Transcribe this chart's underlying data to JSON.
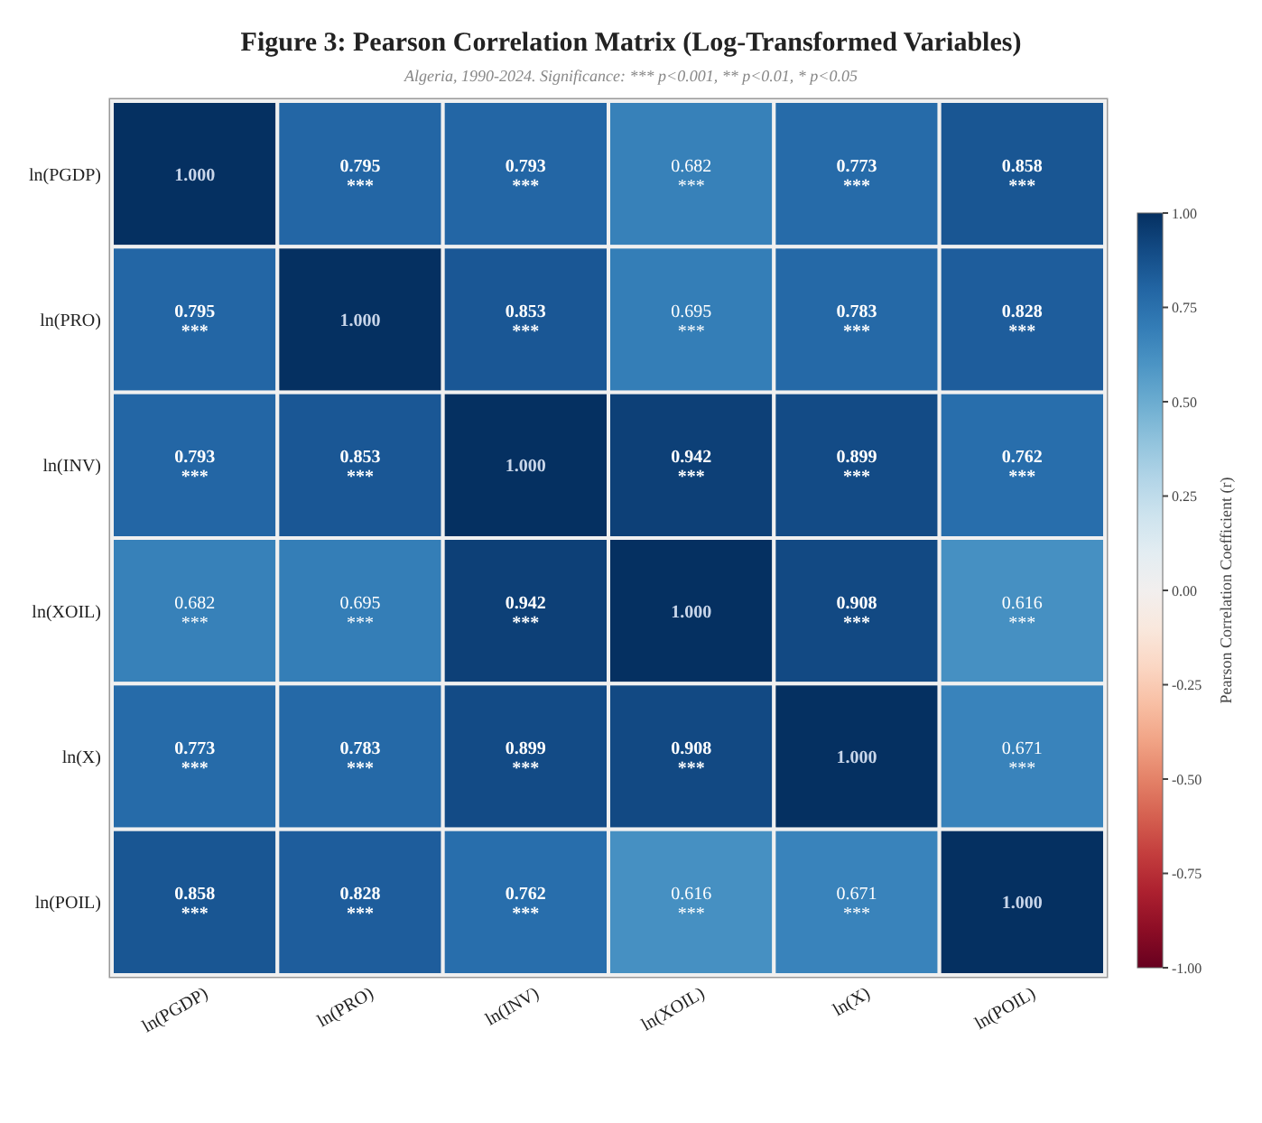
{
  "chart_data": {
    "type": "heatmap",
    "title": "Figure 3: Pearson Correlation Matrix (Log-Transformed Variables)",
    "subtitle": "Algeria, 1990-2024. Significance: *** p<0.001, ** p<0.01, * p<0.05",
    "clabel": "Pearson Correlation Coefficient (r)",
    "categories": [
      "ln(PGDP)",
      "ln(PRO)",
      "ln(INV)",
      "ln(XOIL)",
      "ln(X)",
      "ln(POIL)"
    ],
    "y_categories": [
      "ln(PGDP)",
      "ln(PRO)",
      "ln(INV)",
      "ln(XOIL)",
      "ln(X)",
      "ln(POIL)"
    ],
    "cells": [
      [
        1.0,
        0.795,
        0.793,
        0.682,
        0.773,
        0.858
      ],
      [
        0.795,
        1.0,
        0.853,
        0.695,
        0.783,
        0.828
      ],
      [
        0.793,
        0.853,
        1.0,
        0.942,
        0.899,
        0.762
      ],
      [
        0.682,
        0.695,
        0.942,
        1.0,
        0.908,
        0.616
      ],
      [
        0.773,
        0.783,
        0.899,
        0.908,
        1.0,
        0.671
      ],
      [
        0.858,
        0.828,
        0.762,
        0.616,
        0.671,
        1.0
      ]
    ],
    "cell_labels": [
      [
        "1.000",
        "0.795\n***",
        "0.793\n***",
        "0.682\n***",
        "0.773\n***",
        "0.858\n***"
      ],
      [
        "0.795\n***",
        "1.000",
        "0.853\n***",
        "0.695\n***",
        "0.783\n***",
        "0.828\n***"
      ],
      [
        "0.793\n***",
        "0.853\n***",
        "1.000",
        "0.942\n***",
        "0.899\n***",
        "0.762\n***"
      ],
      [
        "0.682\n***",
        "0.695\n***",
        "0.942\n***",
        "1.000",
        "0.908\n***",
        "0.616\n***"
      ],
      [
        "0.773\n***",
        "0.783\n***",
        "0.899\n***",
        "0.908\n***",
        "1.000",
        "0.671\n***"
      ],
      [
        "0.858\n***",
        "0.828\n***",
        "0.762\n***",
        "0.616\n***",
        "0.671\n***",
        "1.000"
      ]
    ],
    "clim": [
      -1,
      1
    ],
    "cticks": [
      {
        "value": -1,
        "label": "-1.00"
      },
      {
        "value": -0.75,
        "label": "-0.75"
      },
      {
        "value": -0.5,
        "label": "-0.50"
      },
      {
        "value": -0.25,
        "label": "-0.25"
      },
      {
        "value": 0,
        "label": "0.00"
      },
      {
        "value": 0.25,
        "label": "0.25"
      },
      {
        "value": 0.5,
        "label": "0.50"
      },
      {
        "value": 0.75,
        "label": "0.75"
      },
      {
        "value": 1,
        "label": "1.00"
      }
    ]
  }
}
